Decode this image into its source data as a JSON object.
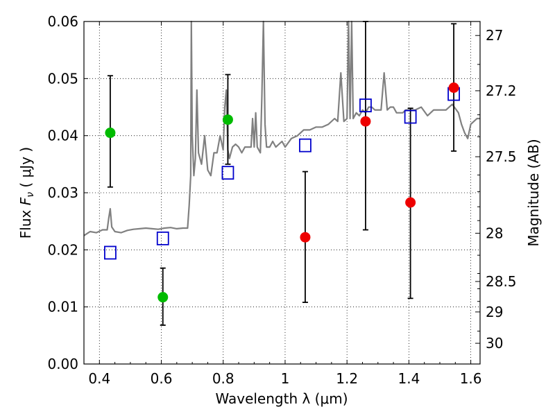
{
  "chart_data": {
    "type": "scatter",
    "xlabel": "Wavelength  λ (μm)",
    "ylabel": "Flux  F_ν  ( μJy )",
    "ylabel_parts": {
      "pre": "Flux  ",
      "var": "F",
      "sub": "ν",
      "post": "  ( μJy )"
    },
    "ylabel_right": "Magnitude (AB)",
    "xlim": [
      0.35,
      1.63
    ],
    "ylim": [
      0.0,
      0.06
    ],
    "grid": true,
    "x_ticks": [
      {
        "value": 0.4,
        "label": "0.4"
      },
      {
        "value": 0.6,
        "label": "0.6"
      },
      {
        "value": 0.8,
        "label": "0.8"
      },
      {
        "value": 1.0,
        "label": "1"
      },
      {
        "value": 1.2,
        "label": "1.2"
      },
      {
        "value": 1.4,
        "label": "1.4"
      },
      {
        "value": 1.6,
        "label": "1.6"
      }
    ],
    "y_ticks": [
      {
        "value": 0.0,
        "label": "0.00"
      },
      {
        "value": 0.01,
        "label": "0.01"
      },
      {
        "value": 0.02,
        "label": "0.02"
      },
      {
        "value": 0.03,
        "label": "0.03"
      },
      {
        "value": 0.04,
        "label": "0.04"
      },
      {
        "value": 0.05,
        "label": "0.05"
      },
      {
        "value": 0.06,
        "label": "0.06"
      }
    ],
    "mag_ticks": [
      {
        "mag": 27,
        "label": "27"
      },
      {
        "mag": 27.2,
        "label": "27.2"
      },
      {
        "mag": 27.5,
        "label": "27.5"
      },
      {
        "mag": 28,
        "label": "28"
      },
      {
        "mag": 28.5,
        "label": "28.5"
      },
      {
        "mag": 29,
        "label": "29"
      },
      {
        "mag": 30,
        "label": "30"
      }
    ],
    "mag_minor_ticks": [
      26.9,
      27.1,
      27.3,
      27.4,
      27.6,
      27.7,
      27.8,
      27.9,
      28.2,
      28.4,
      28.6,
      28.8,
      29.5
    ],
    "colors": {
      "spectrum": "#808080",
      "model_marker": "#0000cc",
      "green_points": "#00bb00",
      "red_points": "#ee0000",
      "errorbar": "#000000",
      "grid": "#000000"
    },
    "series": [
      {
        "marker": "square",
        "color": "#0000cc",
        "x": [
          0.435,
          0.605,
          0.815,
          1.065,
          1.26,
          1.405,
          1.545
        ],
        "y": [
          0.0195,
          0.022,
          0.0335,
          0.0383,
          0.0453,
          0.0433,
          0.0473
        ]
      },
      {
        "marker": "circle",
        "color": "#00bb00",
        "x": [
          0.435,
          0.605,
          0.815
        ],
        "y": [
          0.0405,
          0.0117,
          0.0428
        ],
        "yerr_low": [
          0.031,
          0.0068,
          0.035
        ],
        "yerr_high": [
          0.0505,
          0.0168,
          0.0507
        ]
      },
      {
        "marker": "circle",
        "color": "#ee0000",
        "x": [
          1.065,
          1.26,
          1.405,
          1.545
        ],
        "y": [
          0.0222,
          0.0425,
          0.0283,
          0.0484
        ],
        "yerr_low": [
          0.0108,
          0.0235,
          0.0115,
          0.0373
        ],
        "yerr_high": [
          0.0337,
          0.063,
          0.0448,
          0.0596
        ]
      }
    ],
    "spectrum": {
      "x": [
        0.35,
        0.37,
        0.39,
        0.41,
        0.425,
        0.43,
        0.435,
        0.44,
        0.45,
        0.47,
        0.49,
        0.51,
        0.53,
        0.55,
        0.57,
        0.59,
        0.61,
        0.63,
        0.65,
        0.67,
        0.685,
        0.69,
        0.695,
        0.697,
        0.7,
        0.705,
        0.71,
        0.715,
        0.72,
        0.73,
        0.74,
        0.75,
        0.76,
        0.77,
        0.78,
        0.79,
        0.8,
        0.805,
        0.81,
        0.815,
        0.82,
        0.825,
        0.83,
        0.84,
        0.85,
        0.86,
        0.87,
        0.88,
        0.89,
        0.895,
        0.9,
        0.905,
        0.91,
        0.92,
        0.925,
        0.93,
        0.935,
        0.94,
        0.95,
        0.96,
        0.97,
        0.98,
        0.99,
        1.0,
        1.02,
        1.04,
        1.06,
        1.08,
        1.1,
        1.12,
        1.14,
        1.16,
        1.17,
        1.18,
        1.19,
        1.2,
        1.205,
        1.21,
        1.215,
        1.22,
        1.23,
        1.24,
        1.25,
        1.26,
        1.27,
        1.28,
        1.29,
        1.3,
        1.31,
        1.32,
        1.33,
        1.34,
        1.35,
        1.36,
        1.37,
        1.38,
        1.39,
        1.4,
        1.42,
        1.44,
        1.46,
        1.48,
        1.5,
        1.52,
        1.54,
        1.56,
        1.57,
        1.58,
        1.59,
        1.6,
        1.61,
        1.62,
        1.63
      ],
      "y": [
        0.0225,
        0.0232,
        0.023,
        0.0235,
        0.0235,
        0.0255,
        0.0272,
        0.024,
        0.0232,
        0.023,
        0.0234,
        0.0236,
        0.0237,
        0.0238,
        0.0237,
        0.0236,
        0.0238,
        0.0239,
        0.0237,
        0.0238,
        0.0238,
        0.0278,
        0.033,
        0.062,
        0.04,
        0.033,
        0.036,
        0.048,
        0.037,
        0.035,
        0.04,
        0.034,
        0.033,
        0.037,
        0.037,
        0.04,
        0.0375,
        0.045,
        0.048,
        0.0375,
        0.036,
        0.037,
        0.038,
        0.0385,
        0.038,
        0.037,
        0.038,
        0.038,
        0.038,
        0.043,
        0.038,
        0.044,
        0.038,
        0.037,
        0.047,
        0.062,
        0.042,
        0.038,
        0.038,
        0.039,
        0.038,
        0.0385,
        0.039,
        0.038,
        0.0395,
        0.04,
        0.041,
        0.041,
        0.0415,
        0.0415,
        0.042,
        0.043,
        0.0425,
        0.051,
        0.0425,
        0.043,
        0.062,
        0.043,
        0.062,
        0.043,
        0.044,
        0.0435,
        0.0445,
        0.044,
        0.045,
        0.045,
        0.0445,
        0.0445,
        0.0445,
        0.051,
        0.0445,
        0.045,
        0.045,
        0.044,
        0.044,
        0.044,
        0.0445,
        0.0445,
        0.0445,
        0.045,
        0.0435,
        0.0445,
        0.0445,
        0.0445,
        0.0455,
        0.044,
        0.042,
        0.0405,
        0.0395,
        0.042,
        0.0425,
        0.043,
        0.043
      ]
    }
  }
}
